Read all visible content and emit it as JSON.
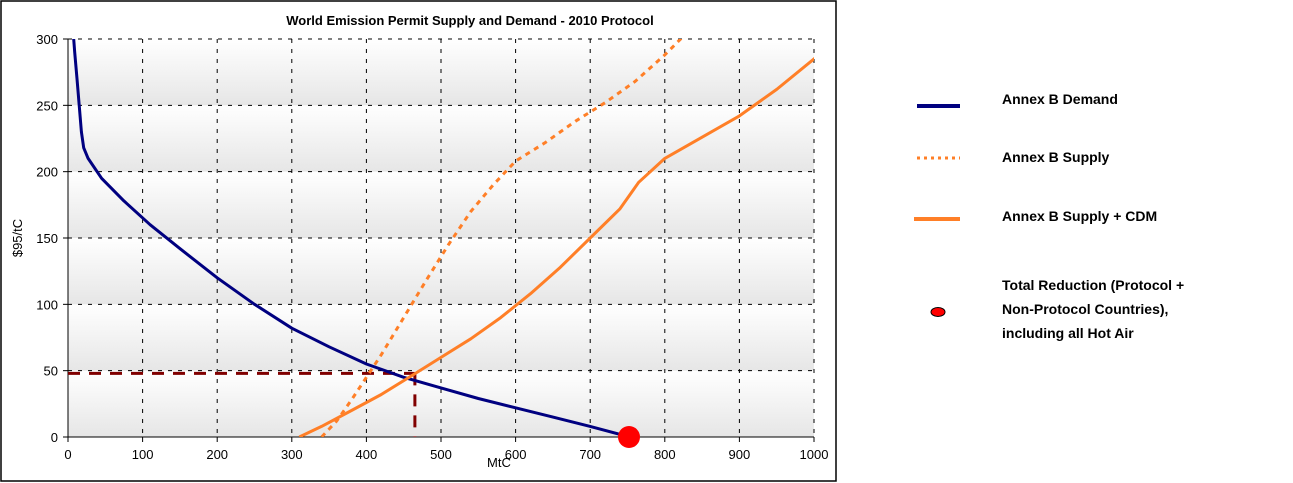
{
  "chart_data": {
    "type": "line",
    "title": "World Emission Permit Supply and Demand - 2010 Protocol",
    "xlabel": "MtC",
    "ylabel": "$95/tC",
    "xlim": [
      0,
      1000
    ],
    "ylim": [
      0,
      300
    ],
    "x_ticks": [
      "0",
      "100",
      "200",
      "300",
      "400",
      "500",
      "600",
      "700",
      "800",
      "900",
      "1000"
    ],
    "y_ticks": [
      "0",
      "50",
      "100",
      "150",
      "200",
      "250",
      "300"
    ],
    "grid": true,
    "legend_position": "right",
    "series": [
      {
        "name": "Annex B Demand",
        "color": "#000080",
        "style": "solid",
        "points": [
          [
            7,
            305
          ],
          [
            9,
            290
          ],
          [
            12,
            270
          ],
          [
            15,
            250
          ],
          [
            18,
            230
          ],
          [
            21,
            218
          ],
          [
            27,
            210
          ],
          [
            45,
            195
          ],
          [
            75,
            178
          ],
          [
            110,
            160
          ],
          [
            150,
            142
          ],
          [
            200,
            120
          ],
          [
            250,
            100
          ],
          [
            300,
            82
          ],
          [
            350,
            68
          ],
          [
            400,
            55
          ],
          [
            450,
            45
          ],
          [
            500,
            37
          ],
          [
            550,
            29
          ],
          [
            600,
            22
          ],
          [
            650,
            15
          ],
          [
            700,
            8
          ],
          [
            753,
            0
          ]
        ]
      },
      {
        "name": "Annex B Supply",
        "color": "#FF7F27",
        "style": "dotted",
        "points": [
          [
            340,
            0
          ],
          [
            360,
            12
          ],
          [
            380,
            28
          ],
          [
            400,
            45
          ],
          [
            420,
            62
          ],
          [
            450,
            90
          ],
          [
            480,
            118
          ],
          [
            510,
            145
          ],
          [
            540,
            170
          ],
          [
            570,
            190
          ],
          [
            600,
            208
          ],
          [
            640,
            222
          ],
          [
            680,
            238
          ],
          [
            720,
            252
          ],
          [
            760,
            268
          ],
          [
            800,
            288
          ],
          [
            830,
            305
          ]
        ]
      },
      {
        "name": "Annex B Supply + CDM",
        "color": "#FF7F27",
        "style": "solid",
        "points": [
          [
            310,
            0
          ],
          [
            340,
            8
          ],
          [
            380,
            20
          ],
          [
            420,
            32
          ],
          [
            460,
            46
          ],
          [
            500,
            60
          ],
          [
            540,
            74
          ],
          [
            580,
            90
          ],
          [
            620,
            108
          ],
          [
            660,
            128
          ],
          [
            700,
            150
          ],
          [
            740,
            172
          ],
          [
            765,
            192
          ],
          [
            800,
            210
          ],
          [
            850,
            226
          ],
          [
            900,
            242
          ],
          [
            950,
            262
          ],
          [
            1000,
            285
          ],
          [
            1033,
            300
          ]
        ]
      }
    ],
    "marker": {
      "name": "Total Reduction (Protocol + Non-Protocol Countries), including all Hot Air",
      "label_lines": [
        "Total Reduction (Protocol +",
        "Non-Protocol Countries),",
        "including all Hot Air"
      ],
      "color": "#FF0000",
      "x": 752,
      "y": 0
    },
    "equilibrium": {
      "x": 465,
      "y": 48,
      "color": "#800000"
    }
  }
}
